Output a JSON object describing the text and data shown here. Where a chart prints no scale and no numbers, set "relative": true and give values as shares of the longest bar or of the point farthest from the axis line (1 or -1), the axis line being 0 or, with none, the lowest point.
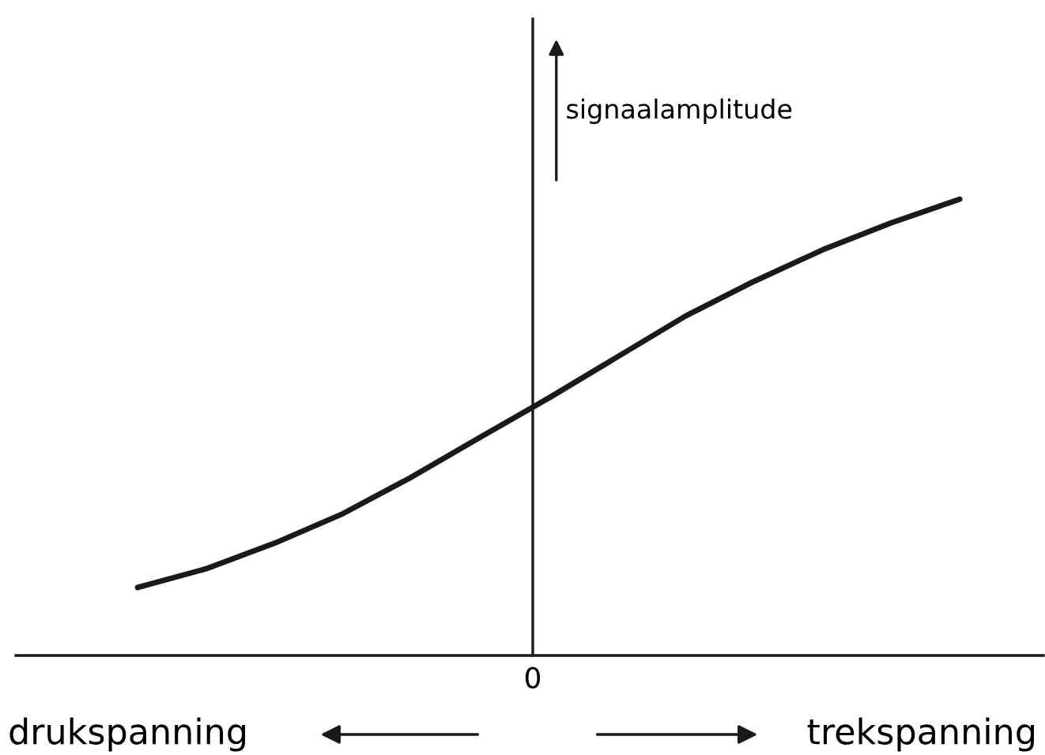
{
  "chart_data": {
    "type": "line",
    "relative": true,
    "ylabel": "signaalamplitude",
    "categories": [
      null,
      null,
      null,
      null,
      null,
      null,
      null,
      null,
      null,
      null,
      null,
      null,
      null
    ],
    "annotations": [
      "0",
      "drukspanning",
      "trekspanning"
    ],
    "series": [
      {
        "color": "#1a1a1a",
        "values": [
          0.149,
          0.19,
          0.246,
          0.311,
          0.391,
          0.478,
          0.564,
          0.654,
          0.744,
          0.82,
          0.889,
          0.948,
          1
        ]
      }
    ]
  }
}
